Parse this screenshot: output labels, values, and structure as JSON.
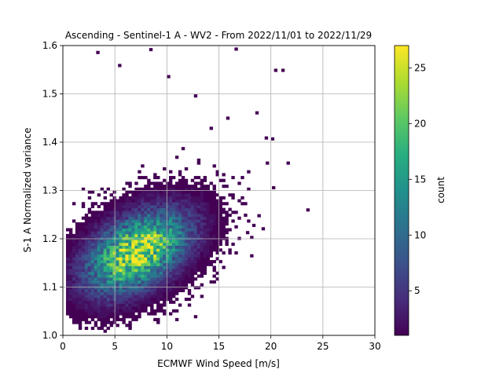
{
  "chart_data": {
    "type": "heatmap",
    "title": "Ascending - Sentinel-1 A - WV2 - From 2022/11/01 to 2022/11/29",
    "xlabel": "ECMWF Wind Speed [m/s]",
    "ylabel": "S-1 A Normalized variance",
    "xlim": [
      0,
      30
    ],
    "ylim": [
      1.0,
      1.6
    ],
    "xticks": [
      "0",
      "5",
      "10",
      "15",
      "20",
      "25",
      "30"
    ],
    "yticks": [
      "1.0",
      "1.1",
      "1.2",
      "1.3",
      "1.4",
      "1.5",
      "1.6"
    ],
    "grid": true,
    "colormap": "viridis",
    "colorbar": {
      "label": "count",
      "range": [
        1,
        27
      ],
      "ticks": [
        "5",
        "10",
        "15",
        "20",
        "25"
      ]
    },
    "bins": {
      "x_width": 0.3,
      "y_width": 0.006
    },
    "density_model": {
      "peak_count": 27,
      "center_wind_speed": 7.0,
      "center_variance": 1.17,
      "spread_wind_speed": 3.2,
      "spread_variance": 0.055,
      "correlation": 0.45,
      "max_wind_speed_extent": 24
    },
    "outlier_cells": [
      [
        3.2,
        1.583
      ],
      [
        5.3,
        1.556
      ],
      [
        8.3,
        1.589
      ],
      [
        16.5,
        1.59
      ],
      [
        20.3,
        1.546
      ],
      [
        21.0,
        1.546
      ],
      [
        10.0,
        1.533
      ],
      [
        12.6,
        1.493
      ],
      [
        18.5,
        1.458
      ],
      [
        15.7,
        1.447
      ],
      [
        19.4,
        1.406
      ],
      [
        20.0,
        1.404
      ],
      [
        21.5,
        1.354
      ],
      [
        20.1,
        1.303
      ],
      [
        23.4,
        1.257
      ],
      [
        18.7,
        1.245
      ],
      [
        17.6,
        1.21
      ],
      [
        18.2,
        1.225
      ],
      [
        19.1,
        1.218
      ],
      [
        18.0,
        1.2
      ]
    ]
  }
}
